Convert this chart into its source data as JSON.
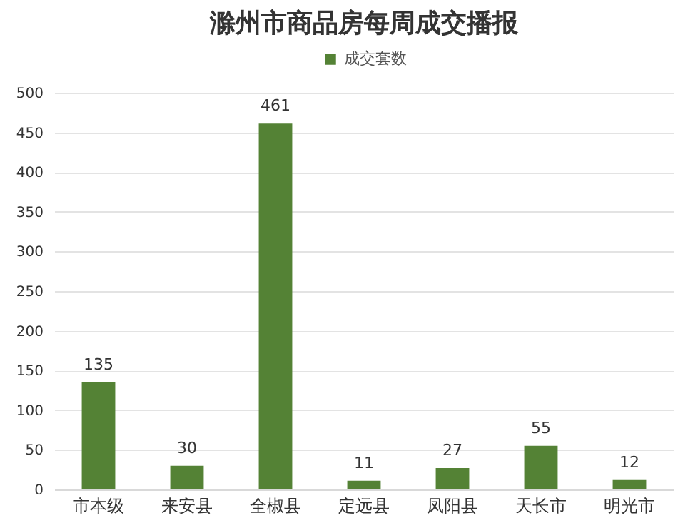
{
  "chart_data": {
    "type": "bar",
    "title": "滁州市商品房每周成交播报",
    "categories": [
      "市本级",
      "来安县",
      "全椒县",
      "定远县",
      "凤阳县",
      "天长市",
      "明光市"
    ],
    "series": [
      {
        "name": "成交套数",
        "color": "#548235",
        "values": [
          135,
          30,
          461,
          11,
          27,
          55,
          12
        ]
      }
    ],
    "ylim": [
      0,
      500
    ],
    "yticks": [
      0,
      50,
      100,
      150,
      200,
      250,
      300,
      350,
      400,
      450,
      500
    ],
    "grid": "y",
    "legend": "top",
    "data_labels": true
  }
}
